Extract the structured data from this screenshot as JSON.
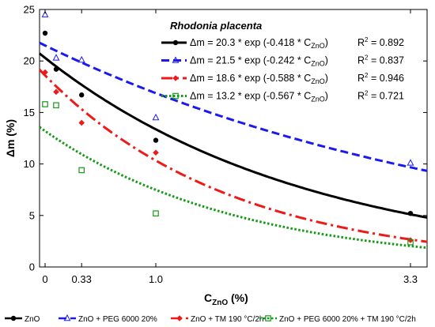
{
  "chart_data": {
    "type": "scatter",
    "title": "Rhodonia placenta",
    "xlabel_main": "C",
    "xlabel_sub": "ZnO",
    "xlabel_unit": " (%)",
    "ylabel": "Δm (%)",
    "xlim": [
      -0.05,
      3.45
    ],
    "ylim": [
      0,
      25
    ],
    "x_ticks": [
      0,
      0.33,
      1.0,
      3.3
    ],
    "x_tick_labels": [
      "0",
      "0.33",
      "1.0",
      "3.3"
    ],
    "y_ticks": [
      0,
      5,
      10,
      15,
      20,
      25
    ],
    "y_tick_labels": [
      "0",
      "5",
      "10",
      "15",
      "20",
      "25"
    ],
    "grid": false,
    "legend_position": "bottom",
    "series": [
      {
        "legend_label": "ZnO",
        "color": "#000000",
        "marker": "circle",
        "line_style": "solid",
        "fit": {
          "a": 20.3,
          "b": -0.418
        },
        "equation_prefix": "Δm = 20.3 * exp (-0.418 * C",
        "r2_value": "= 0.892",
        "points": [
          {
            "x": 0,
            "y": 22.7
          },
          {
            "x": 0.1,
            "y": 19.2
          },
          {
            "x": 0.33,
            "y": 16.7
          },
          {
            "x": 1.0,
            "y": 12.3
          },
          {
            "x": 3.3,
            "y": 5.2
          }
        ]
      },
      {
        "legend_label": "ZnO +  PEG 6000 20%",
        "color": "#1a1aee",
        "marker": "triangle-open",
        "line_style": "dashed",
        "fit": {
          "a": 21.5,
          "b": -0.242
        },
        "equation_prefix": "Δm = 21.5 * exp (-0.242 * C",
        "r2_value": "= 0.837",
        "points": [
          {
            "x": 0,
            "y": 24.5
          },
          {
            "x": 0.1,
            "y": 20.3
          },
          {
            "x": 0.33,
            "y": 20.1
          },
          {
            "x": 1.0,
            "y": 14.5
          },
          {
            "x": 3.3,
            "y": 10.1
          }
        ]
      },
      {
        "legend_label": "ZnO + TM 190 °C/2h",
        "color": "#ee1a1a",
        "marker": "diamond",
        "line_style": "dashdot",
        "fit": {
          "a": 18.6,
          "b": -0.588
        },
        "equation_prefix": "Δm = 18.6 * exp (-0.588 * C",
        "r2_value": "= 0.946",
        "points": [
          {
            "x": 0,
            "y": 18.9
          },
          {
            "x": 0.1,
            "y": 17.0
          },
          {
            "x": 0.33,
            "y": 14.0
          },
          {
            "x": 1.0,
            "y": 11.1
          },
          {
            "x": 3.3,
            "y": 2.6
          }
        ]
      },
      {
        "legend_label": "ZnO + PEG 6000 20% + TM 190 °C/2h",
        "color": "#159a15",
        "marker": "square-open",
        "line_style": "dotted",
        "fit": {
          "a": 13.2,
          "b": -0.567
        },
        "equation_prefix": "Δm = 13.2 * exp (-0.567 * C",
        "r2_value": "= 0.721",
        "points": [
          {
            "x": 0,
            "y": 15.8
          },
          {
            "x": 0.1,
            "y": 15.7
          },
          {
            "x": 0.33,
            "y": 9.4
          },
          {
            "x": 1.0,
            "y": 5.2
          },
          {
            "x": 3.3,
            "y": 2.4
          }
        ]
      }
    ]
  }
}
